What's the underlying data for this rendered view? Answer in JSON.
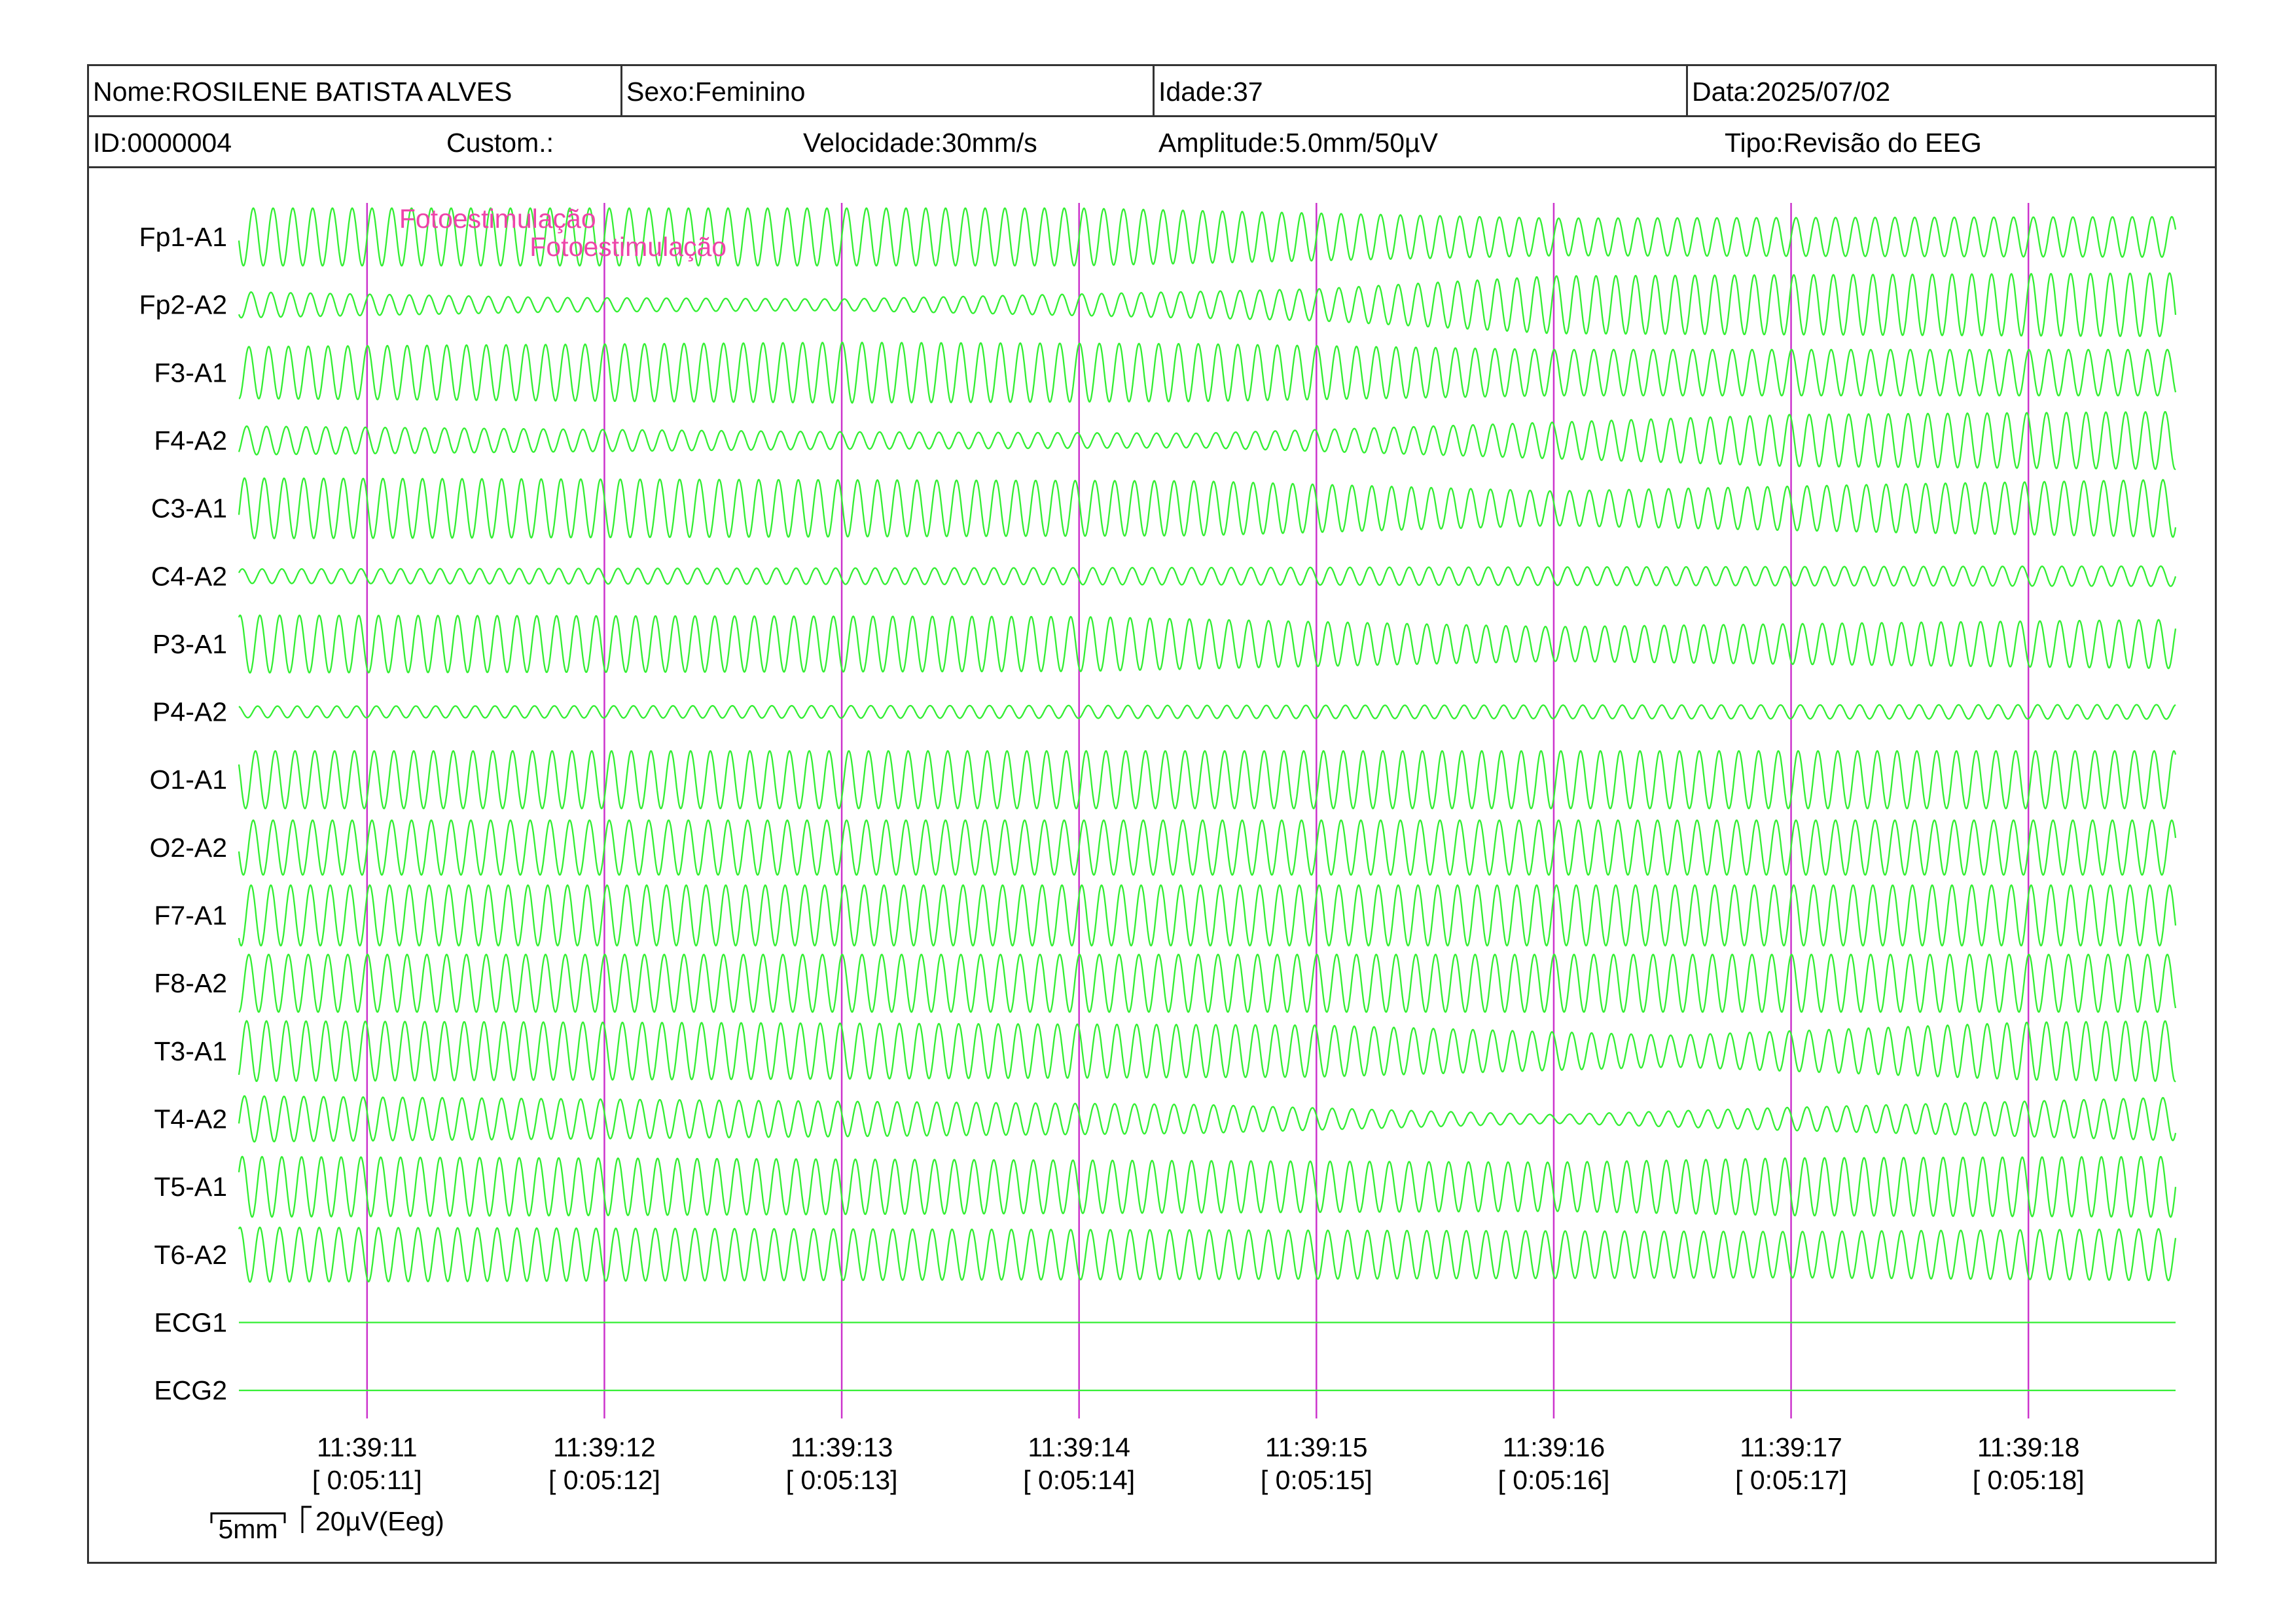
{
  "header": {
    "nome": "Nome:ROSILENE BATISTA ALVES",
    "sexo": "Sexo:Feminino",
    "idade": "Idade:37",
    "data": "Data:2025/07/02",
    "id": "ID:0000004",
    "custom": "Custom.:",
    "velocidade": "Velocidade:30mm/s",
    "amplitude": "Amplitude:5.0mm/50µV",
    "tipo": "Tipo:Revisão do EEG"
  },
  "scale_legend": {
    "time_label": "5mm",
    "amp_label": "20µV(Eeg)"
  },
  "colors": {
    "trace": "#33ee33",
    "marker": "#cc33cc",
    "annotation": "#ee44aa",
    "border": "#333333"
  },
  "chart_data": {
    "type": "line",
    "channels": [
      "Fp1-A1",
      "Fp2-A2",
      "F3-A1",
      "F4-A2",
      "C3-A1",
      "C4-A2",
      "P3-A1",
      "P4-A2",
      "O1-A1",
      "O2-A2",
      "F7-A1",
      "F8-A2",
      "T3-A1",
      "T4-A2",
      "T5-A1",
      "T6-A2",
      "ECG1",
      "ECG2"
    ],
    "time_markers": [
      {
        "clock": "11:39:11",
        "elapsed": "[ 0:05:11]"
      },
      {
        "clock": "11:39:12",
        "elapsed": "[ 0:05:12]"
      },
      {
        "clock": "11:39:13",
        "elapsed": "[ 0:05:13]"
      },
      {
        "clock": "11:39:14",
        "elapsed": "[ 0:05:14]"
      },
      {
        "clock": "11:39:15",
        "elapsed": "[ 0:05:15]"
      },
      {
        "clock": "11:39:16",
        "elapsed": "[ 0:05:16]"
      },
      {
        "clock": "11:39:17",
        "elapsed": "[ 0:05:17]"
      },
      {
        "clock": "11:39:18",
        "elapsed": "[ 0:05:18]"
      }
    ],
    "events": [
      {
        "label": "Fotoestimulação",
        "time_s": 11.55
      },
      {
        "label": "Fotoestimulação",
        "time_s": 12.1
      }
    ],
    "time_range_s": [
      10.46,
      18.62
    ],
    "oscillation_hz": 12,
    "amplitude_profiles": [
      [
        [
          10.46,
          1.0
        ],
        [
          14.0,
          1.0
        ],
        [
          16.0,
          0.65
        ],
        [
          18.62,
          0.7
        ]
      ],
      [
        [
          10.46,
          0.45
        ],
        [
          11.8,
          0.25
        ],
        [
          13.0,
          0.2
        ],
        [
          15.0,
          0.55
        ],
        [
          16.0,
          1.0
        ],
        [
          18.62,
          1.1
        ]
      ],
      [
        [
          10.46,
          0.9
        ],
        [
          13.0,
          1.05
        ],
        [
          14.5,
          1.0
        ],
        [
          16.0,
          0.8
        ],
        [
          18.62,
          0.8
        ]
      ],
      [
        [
          10.46,
          0.5
        ],
        [
          13.0,
          0.3
        ],
        [
          14.5,
          0.25
        ],
        [
          15.5,
          0.5
        ],
        [
          17.0,
          0.9
        ],
        [
          18.62,
          1.0
        ]
      ],
      [
        [
          10.46,
          1.05
        ],
        [
          14.5,
          0.95
        ],
        [
          16.0,
          0.6
        ],
        [
          17.5,
          0.85
        ],
        [
          18.62,
          1.0
        ]
      ],
      [
        [
          10.46,
          0.25
        ],
        [
          18.62,
          0.35
        ]
      ],
      [
        [
          10.46,
          1.0
        ],
        [
          14.0,
          0.95
        ],
        [
          16.0,
          0.6
        ],
        [
          17.5,
          0.75
        ],
        [
          18.62,
          0.85
        ]
      ],
      [
        [
          10.46,
          0.2
        ],
        [
          18.62,
          0.25
        ]
      ],
      [
        [
          10.46,
          1.0
        ],
        [
          18.62,
          1.0
        ]
      ],
      [
        [
          10.46,
          0.95
        ],
        [
          18.62,
          0.95
        ]
      ],
      [
        [
          10.46,
          1.05
        ],
        [
          18.62,
          1.05
        ]
      ],
      [
        [
          10.46,
          1.0
        ],
        [
          18.62,
          1.0
        ]
      ],
      [
        [
          10.46,
          1.05
        ],
        [
          15.0,
          0.9
        ],
        [
          16.5,
          0.55
        ],
        [
          18.0,
          1.0
        ],
        [
          18.62,
          1.05
        ]
      ],
      [
        [
          10.46,
          0.8
        ],
        [
          14.5,
          0.5
        ],
        [
          16.0,
          0.15
        ],
        [
          17.0,
          0.4
        ],
        [
          18.62,
          0.75
        ]
      ],
      [
        [
          10.46,
          1.05
        ],
        [
          16.0,
          0.85
        ],
        [
          17.0,
          1.0
        ],
        [
          18.62,
          1.05
        ]
      ],
      [
        [
          10.46,
          0.95
        ],
        [
          17.0,
          0.8
        ],
        [
          18.62,
          0.9
        ]
      ],
      [
        [
          10.46,
          0.0
        ],
        [
          18.62,
          0.0
        ]
      ],
      [
        [
          10.46,
          0.0
        ],
        [
          18.62,
          0.0
        ]
      ]
    ]
  }
}
